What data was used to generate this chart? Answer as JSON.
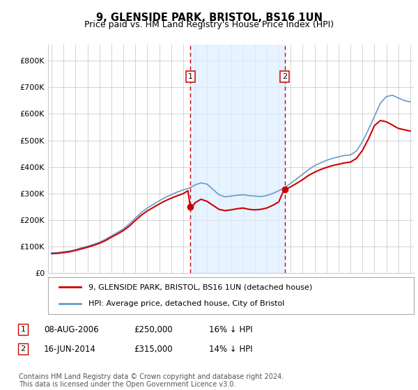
{
  "title": "9, GLENSIDE PARK, BRISTOL, BS16 1UN",
  "subtitle": "Price paid vs. HM Land Registry's House Price Index (HPI)",
  "title_fontsize": 10.5,
  "subtitle_fontsize": 9,
  "ylabel_ticks": [
    "£0",
    "£100K",
    "£200K",
    "£300K",
    "£400K",
    "£500K",
    "£600K",
    "£700K",
    "£800K"
  ],
  "ytick_values": [
    0,
    100000,
    200000,
    300000,
    400000,
    500000,
    600000,
    700000,
    800000
  ],
  "ylim": [
    0,
    860000
  ],
  "xlim_start": 1994.7,
  "xlim_end": 2025.3,
  "purchase1_date": 2006.6,
  "purchase1_price": 250000,
  "purchase1_label": "1",
  "purchase2_date": 2014.5,
  "purchase2_price": 315000,
  "purchase2_label": "2",
  "red_line_color": "#cc0000",
  "blue_line_color": "#6699cc",
  "blue_fill_color": "#ddeeff",
  "dashed_line_color": "#cc0000",
  "grid_color": "#cccccc",
  "background_color": "#ffffff",
  "legend_red_label": "9, GLENSIDE PARK, BRISTOL, BS16 1UN (detached house)",
  "legend_blue_label": "HPI: Average price, detached house, City of Bristol",
  "table_rows": [
    {
      "label": "1",
      "date": "08-AUG-2006",
      "price": "£250,000",
      "hpi": "16% ↓ HPI"
    },
    {
      "label": "2",
      "date": "16-JUN-2014",
      "price": "£315,000",
      "hpi": "14% ↓ HPI"
    }
  ],
  "footnote": "Contains HM Land Registry data © Crown copyright and database right 2024.\nThis data is licensed under the Open Government Licence v3.0.",
  "footnote_fontsize": 7.0
}
